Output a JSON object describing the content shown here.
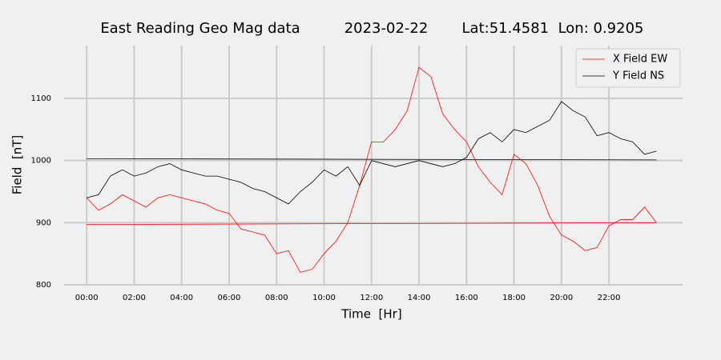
{
  "chart_data": {
    "type": "line",
    "title": "East Reading Geo Mag data",
    "subtitle": "2023-02-22",
    "location": "Lat:51.4581  Lon: 0.9205",
    "xlabel": "Time  [Hr]",
    "ylabel": "Field  [nT]",
    "x": [
      0,
      0.5,
      1,
      1.5,
      2,
      2.5,
      3,
      3.5,
      4,
      4.5,
      5,
      5.5,
      6,
      6.5,
      7,
      7.5,
      8,
      8.5,
      9,
      9.5,
      10,
      10.5,
      11,
      11.5,
      12,
      12.5,
      13,
      13.5,
      14,
      14.5,
      15,
      15.5,
      16,
      16.5,
      17,
      17.5,
      18,
      18.5,
      19,
      19.5,
      20,
      20.5,
      21,
      21.5,
      22,
      22.5,
      23,
      23.5,
      24
    ],
    "series": [
      {
        "name": "X Field EW",
        "color": "#ff0000",
        "values": [
          940,
          920,
          930,
          945,
          935,
          925,
          940,
          945,
          940,
          935,
          930,
          920,
          915,
          890,
          885,
          880,
          850,
          855,
          820,
          825,
          850,
          870,
          900,
          960,
          1030,
          1030,
          1050,
          1080,
          1150,
          1135,
          1075,
          1050,
          1030,
          990,
          965,
          945,
          1010,
          995,
          960,
          910,
          880,
          870,
          855,
          860,
          895,
          905,
          905,
          925,
          900
        ]
      },
      {
        "name": "Y Field NS",
        "color": "#000000",
        "values": [
          940,
          945,
          975,
          985,
          975,
          980,
          990,
          995,
          985,
          980,
          975,
          975,
          970,
          965,
          955,
          950,
          940,
          930,
          950,
          965,
          985,
          975,
          990,
          960,
          1000,
          995,
          990,
          995,
          1000,
          995,
          990,
          995,
          1005,
          1035,
          1045,
          1030,
          1050,
          1045,
          1055,
          1065,
          1095,
          1080,
          1070,
          1040,
          1045,
          1035,
          1030,
          1010,
          1015
        ]
      }
    ],
    "reference_lines": [
      {
        "color": "#ff0000",
        "values": [
          897,
          900
        ]
      },
      {
        "color": "#000000",
        "values": [
          1003,
          1001
        ]
      }
    ],
    "xlim": [
      -0.95,
      25.1
    ],
    "xticks": [
      {
        "value": 0,
        "label": "00:00"
      },
      {
        "value": 2,
        "label": "02:00"
      },
      {
        "value": 4,
        "label": "04:00"
      },
      {
        "value": 6,
        "label": "06:00"
      },
      {
        "value": 8,
        "label": "08:00"
      },
      {
        "value": 10,
        "label": "10:00"
      },
      {
        "value": 12,
        "label": "12:00"
      },
      {
        "value": 14,
        "label": "14:00"
      },
      {
        "value": 16,
        "label": "16:00"
      },
      {
        "value": 18,
        "label": "18:00"
      },
      {
        "value": 20,
        "label": "20:00"
      },
      {
        "value": 22,
        "label": "22:00"
      }
    ],
    "ylim": [
      800,
      1185
    ],
    "yticks": [
      800,
      900,
      1000,
      1100
    ],
    "grid": true,
    "legend": "upper right"
  }
}
